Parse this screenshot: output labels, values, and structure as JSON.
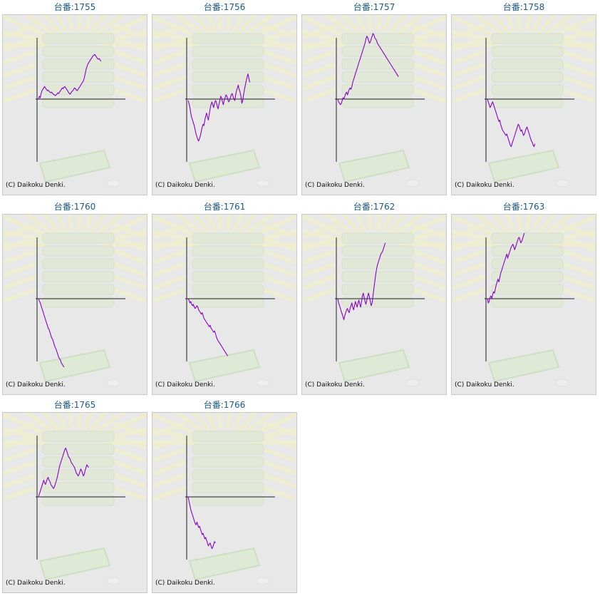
{
  "copyright": "(C) Daikoku Denki.",
  "colors": {
    "title": "#1a5a8a",
    "line": "#8800cc",
    "axis": "#222222",
    "panel_bg": "#e8e8e8"
  },
  "chart_data": [
    {
      "type": "line",
      "title": "台番:1755",
      "values": [
        0,
        4,
        2,
        8,
        12,
        14,
        16,
        18,
        16,
        14,
        12,
        13,
        11,
        10,
        9,
        10,
        8,
        7,
        6,
        5,
        6,
        7,
        9,
        8,
        10,
        12,
        14,
        16,
        15,
        17,
        18,
        16,
        14,
        12,
        10,
        8,
        7,
        9,
        11,
        12,
        14,
        16,
        15,
        13,
        12,
        14,
        16,
        18,
        20,
        22,
        24,
        26,
        30,
        36,
        42,
        46,
        50,
        52,
        54,
        56,
        58,
        60,
        62,
        63,
        64,
        62,
        60,
        58,
        57,
        58,
        56,
        54
      ]
    },
    {
      "type": "line",
      "title": "台番:1756",
      "values": [
        -2,
        -6,
        -12,
        -20,
        -26,
        -30,
        -34,
        -38,
        -44,
        -50,
        -54,
        -58,
        -60,
        -56,
        -52,
        -46,
        -40,
        -36,
        -38,
        -30,
        -24,
        -20,
        -26,
        -30,
        -22,
        -14,
        -8,
        -4,
        -8,
        -12,
        -6,
        -2,
        -4,
        -10,
        -14,
        -8,
        -2,
        4,
        2,
        -4,
        -8,
        -2,
        2,
        6,
        4,
        0,
        -4,
        -2,
        2,
        6,
        8,
        4,
        0,
        -2,
        6,
        12,
        16,
        20,
        14,
        10,
        4,
        -6,
        -2,
        6,
        14,
        20,
        26,
        32,
        36,
        30,
        24
      ]
    },
    {
      "type": "line",
      "title": "台番:1757",
      "values": [
        0,
        -4,
        -6,
        -8,
        -6,
        -2,
        2,
        0,
        4,
        8,
        10,
        6,
        10,
        14,
        16,
        14,
        18,
        24,
        28,
        32,
        36,
        40,
        44,
        48,
        52,
        56,
        60,
        64,
        68,
        72,
        76,
        80,
        86,
        90,
        88,
        84,
        80,
        82,
        86,
        90,
        94,
        92,
        88,
        86,
        84,
        80,
        78,
        76,
        74,
        72,
        70,
        68,
        66,
        64,
        62,
        60,
        58,
        56,
        54,
        52,
        50,
        48,
        46,
        44,
        42,
        40,
        38,
        36,
        34,
        32
      ]
    },
    {
      "type": "line",
      "title": "台番:1758",
      "values": [
        0,
        -4,
        -8,
        -12,
        -10,
        -6,
        -4,
        -8,
        -12,
        -16,
        -20,
        -24,
        -28,
        -32,
        -30,
        -36,
        -40,
        -44,
        -46,
        -48,
        -50,
        -52,
        -50,
        -54,
        -58,
        -62,
        -66,
        -68,
        -64,
        -60,
        -56,
        -52,
        -48,
        -44,
        -40,
        -36,
        -38,
        -42,
        -46,
        -44,
        -48,
        -52,
        -50,
        -46,
        -42,
        -40,
        -44,
        -48,
        -52,
        -56,
        -60,
        -62,
        -66,
        -68,
        -64
      ]
    },
    {
      "type": "line",
      "title": "台番:1760",
      "values": [
        0,
        -3,
        -6,
        -10,
        -14,
        -18,
        -22,
        -26,
        -30,
        -34,
        -38,
        -42,
        -44,
        -48,
        -52,
        -56,
        -58,
        -62,
        -66,
        -70,
        -72,
        -76,
        -80,
        -84,
        -86,
        -88,
        -92,
        -94,
        -96,
        -98
      ]
    },
    {
      "type": "line",
      "title": "台番:1761",
      "values": [
        0,
        -2,
        -6,
        -4,
        -8,
        -10,
        -8,
        -12,
        -14,
        -12,
        -10,
        -12,
        -16,
        -18,
        -20,
        -22,
        -20,
        -24,
        -28,
        -30,
        -32,
        -34,
        -36,
        -38,
        -40,
        -38,
        -42,
        -44,
        -46,
        -48,
        -46,
        -50,
        -54,
        -58,
        -60,
        -62,
        -64,
        -66,
        -68,
        -70,
        -72,
        -74,
        -76,
        -78,
        -80,
        -82
      ]
    },
    {
      "type": "line",
      "title": "台番:1762",
      "values": [
        0,
        -6,
        -10,
        -14,
        -18,
        -22,
        -26,
        -30,
        -24,
        -20,
        -16,
        -14,
        -18,
        -20,
        -14,
        -10,
        -6,
        -12,
        -16,
        -10,
        -4,
        -8,
        -12,
        -6,
        -2,
        -8,
        -12,
        -4,
        4,
        8,
        2,
        -4,
        -8,
        -2,
        4,
        8,
        2,
        -4,
        -10,
        -6,
        4,
        14,
        24,
        34,
        42,
        48,
        52,
        56,
        60,
        64,
        66,
        68,
        72,
        76,
        80
      ]
    },
    {
      "type": "line",
      "title": "台番:1763",
      "values": [
        0,
        -6,
        -4,
        2,
        4,
        0,
        6,
        10,
        8,
        14,
        20,
        24,
        28,
        24,
        30,
        36,
        40,
        44,
        48,
        52,
        56,
        60,
        64,
        58,
        62,
        66,
        70,
        74,
        76,
        78,
        74,
        70,
        74,
        78,
        82,
        86,
        88,
        84,
        80,
        82,
        86,
        90,
        94
      ]
    },
    {
      "type": "line",
      "title": "台番:1765",
      "values": [
        0,
        4,
        8,
        12,
        16,
        20,
        24,
        20,
        18,
        22,
        26,
        28,
        24,
        22,
        18,
        16,
        14,
        12,
        14,
        18,
        22,
        26,
        32,
        38,
        44,
        48,
        52,
        56,
        60,
        64,
        68,
        70,
        66,
        62,
        58,
        56,
        54,
        50,
        48,
        46,
        44,
        42,
        38,
        34,
        32,
        30,
        32,
        36,
        40,
        38,
        34,
        30,
        32,
        38,
        42,
        46,
        44,
        42
      ]
    },
    {
      "type": "line",
      "title": "台番:1766",
      "values": [
        0,
        -6,
        -12,
        -18,
        -22,
        -26,
        -30,
        -34,
        -38,
        -40,
        -36,
        -40,
        -44,
        -42,
        -46,
        -50,
        -54,
        -52,
        -56,
        -60,
        -58,
        -62,
        -66,
        -70,
        -68,
        -66,
        -70,
        -74,
        -72,
        -68,
        -64,
        -66
      ]
    }
  ]
}
